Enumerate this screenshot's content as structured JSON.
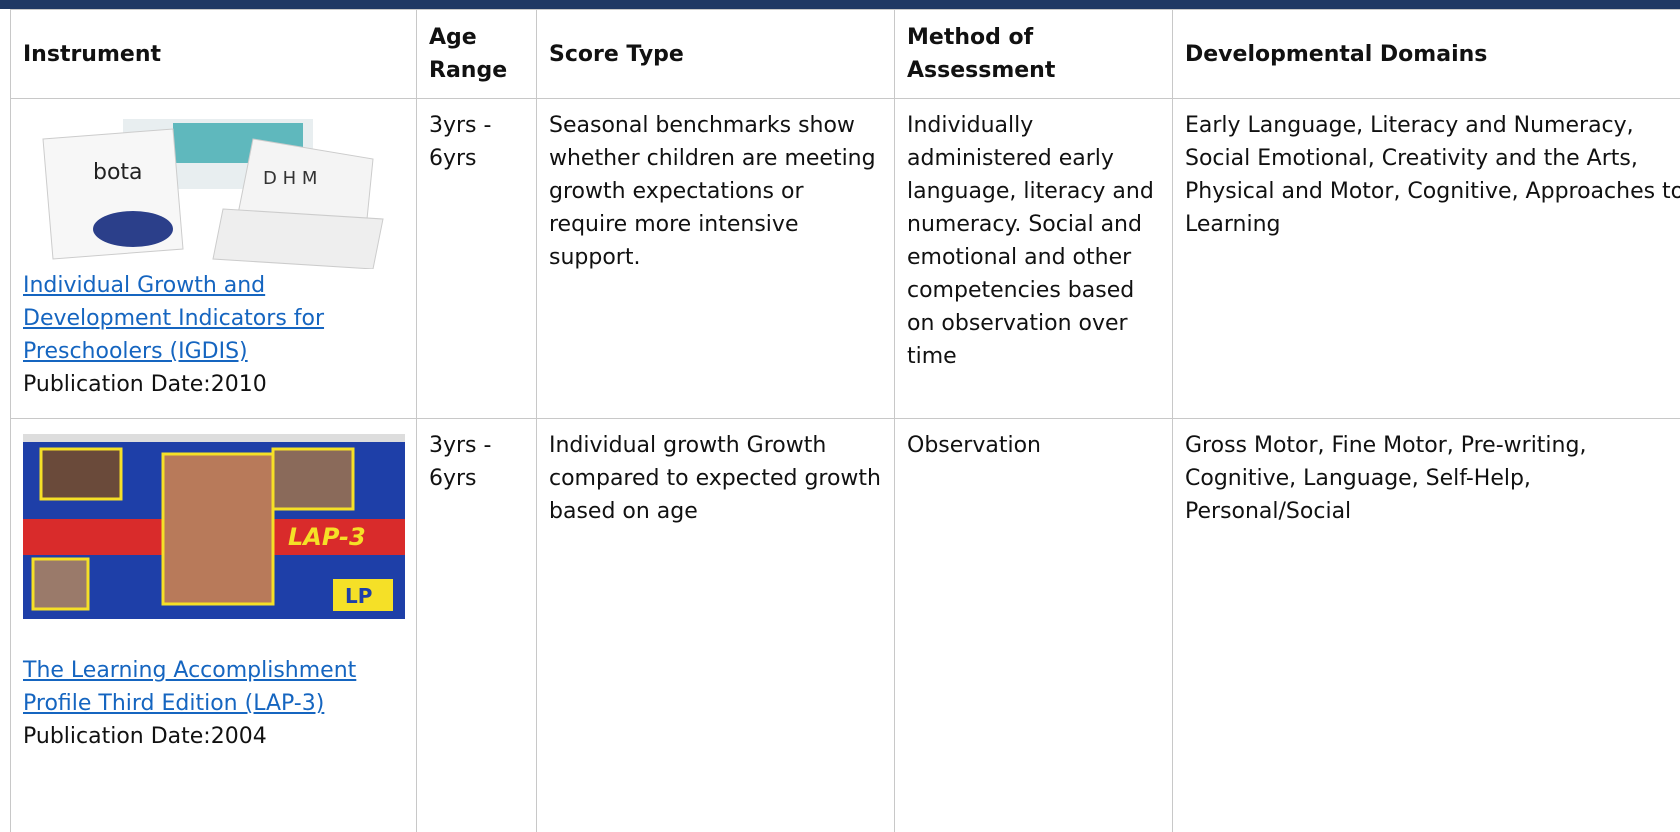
{
  "table": {
    "headers": [
      "Instrument",
      "Age Range",
      "Score Type",
      "Method of Assessment",
      "Developmental Domains"
    ],
    "rows": [
      {
        "image_text": [
          "bota",
          "D H M"
        ],
        "instrument": "Individual Growth and Development Indicators for Preschoolers (IGDIS)",
        "publication": "Publication Date:2010",
        "age_range": "3yrs - 6yrs",
        "score_type": "Seasonal benchmarks show whether children are meeting growth expectations or require more intensive support.",
        "method": "Individually administered early language, literacy and numeracy. Social and emotional and other competencies based on observation over time",
        "domains": "Early Language, Literacy and Numeracy, Social Emotional, Creativity and the Arts, Physical and Motor, Cognitive, Approaches to Learning"
      },
      {
        "image_text": [
          "LAP-3",
          "LP"
        ],
        "instrument": "The Learning Accomplishment Profile Third Edition (LAP-3)",
        "publication": "Publication Date:2004",
        "age_range": "3yrs - 6yrs",
        "score_type": "Individual growth Growth compared to expected growth based on age",
        "method": "Observation",
        "domains": "Gross Motor, Fine Motor, Pre-writing, Cognitive, Language, Self-Help, Personal/Social"
      }
    ]
  }
}
